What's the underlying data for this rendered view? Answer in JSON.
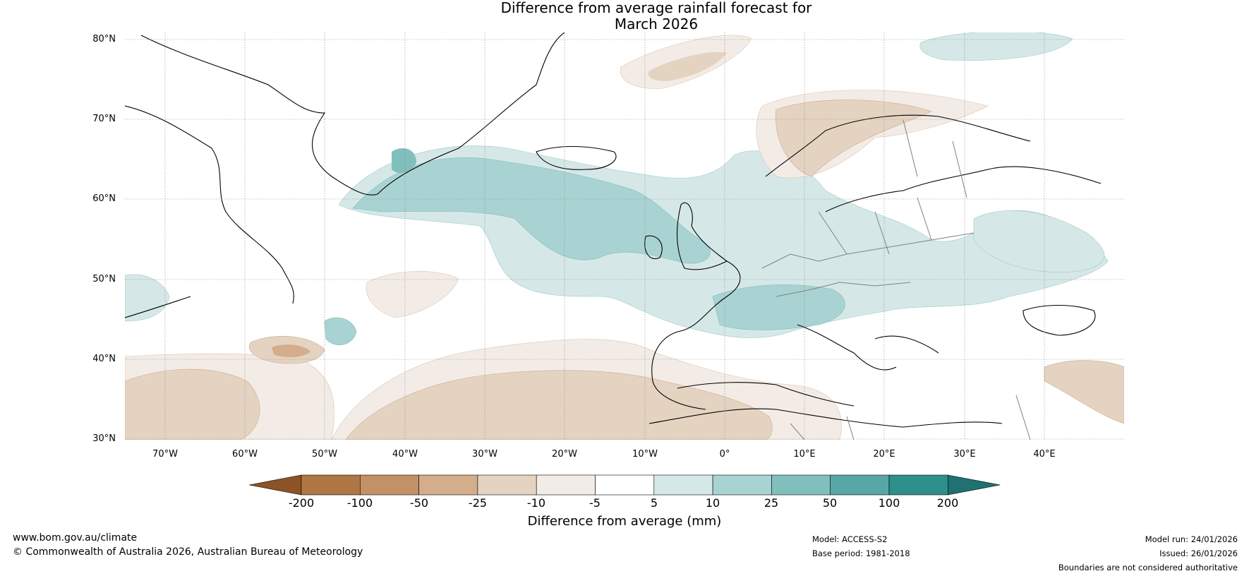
{
  "title": {
    "line1": "Difference from average rainfall forecast for",
    "line2": "March 2026"
  },
  "map": {
    "projection": "plate-carree",
    "extent": {
      "lon": [
        -75,
        50
      ],
      "lat": [
        30,
        81
      ]
    },
    "lat_labels": [
      "80°N",
      "70°N",
      "60°N",
      "50°N",
      "40°N",
      "30°N"
    ],
    "lon_labels": [
      "70°W",
      "60°W",
      "50°W",
      "40°W",
      "30°W",
      "20°W",
      "10°W",
      "0°",
      "10°E",
      "20°E",
      "30°E",
      "40°E"
    ],
    "gridlines": true
  },
  "colorbar": {
    "label": "Difference from average (mm)",
    "ticks": [
      "-200",
      "-100",
      "-50",
      "-25",
      "-10",
      "-5",
      "5",
      "10",
      "25",
      "50",
      "100",
      "200"
    ],
    "colors": [
      "#8c5426",
      "#b07744",
      "#c39166",
      "#d4ad8d",
      "#e5d3c2",
      "#f3ece6",
      "#ffffff",
      "#d5e8e7",
      "#a9d3d2",
      "#81bfbd",
      "#58a7a7",
      "#2e8f8d",
      "#1f7172"
    ]
  },
  "footer": {
    "website": "www.bom.gov.au/climate",
    "copyright": "© Commonwealth of Australia 2026, Australian Bureau of Meteorology",
    "model": "Model: ACCESS-S2",
    "base_period": "Base period: 1981-2018",
    "model_run": "Model run: 24/01/2026",
    "issued": "Issued: 26/01/2026",
    "disclaimer": "Boundaries are not considered authoritative"
  }
}
